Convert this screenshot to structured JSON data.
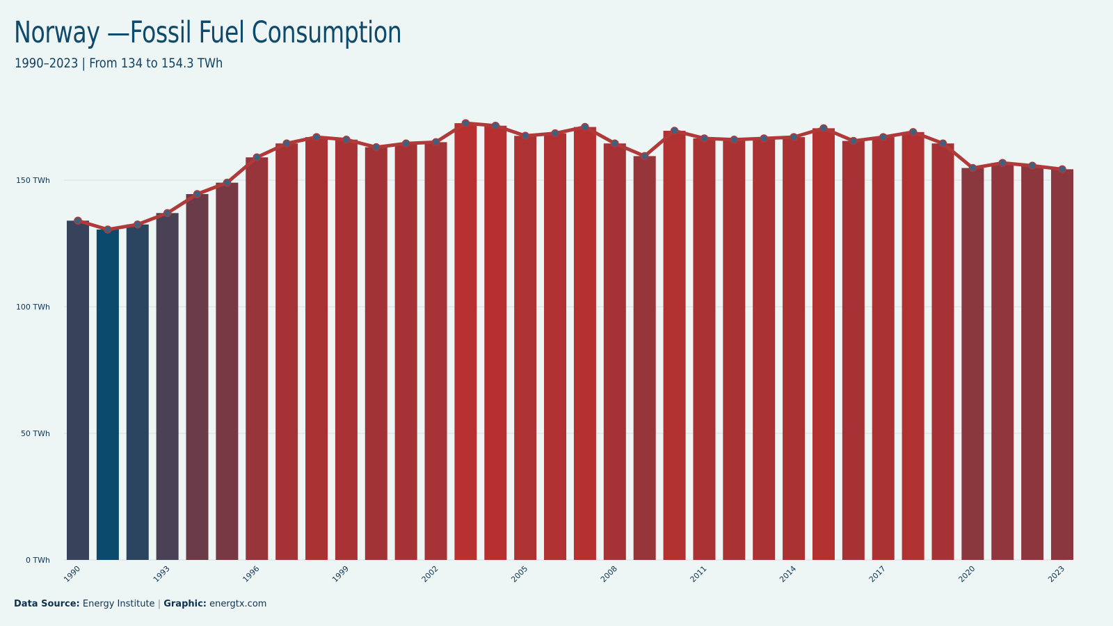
{
  "header": {
    "title": "Norway —Fossil Fuel Consumption",
    "subtitle": "1990–2023 | From 134 to 154.3 TWh"
  },
  "footer": {
    "source_label": "Data Source:",
    "source_value": "Energy Institute",
    "separator": "|",
    "graphic_label": "Graphic:",
    "graphic_value": "energtx.com"
  },
  "colors": {
    "background": "#eef5f5",
    "line": "#b03a3a",
    "marker_fill": "#3d6280",
    "low": "#0b4a6a",
    "high": "#b8302f",
    "grid": "#d5dfe3",
    "axis_text": "#0e3350"
  },
  "chart_data": {
    "type": "bar",
    "categories": [
      "1990",
      "1991",
      "1992",
      "1993",
      "1994",
      "1995",
      "1996",
      "1997",
      "1998",
      "1999",
      "2000",
      "2001",
      "2002",
      "2003",
      "2004",
      "2005",
      "2006",
      "2007",
      "2008",
      "2009",
      "2010",
      "2011",
      "2012",
      "2013",
      "2014",
      "2015",
      "2016",
      "2017",
      "2018",
      "2019",
      "2020",
      "2021",
      "2022",
      "2023"
    ],
    "x_tick_labels": [
      "1990",
      "1993",
      "1996",
      "1999",
      "2002",
      "2005",
      "2008",
      "2011",
      "2014",
      "2017",
      "2020",
      "2023"
    ],
    "series": [
      {
        "values": [
          134,
          130.5,
          132.5,
          137,
          144.5,
          149,
          159,
          164.5,
          167,
          166,
          163,
          164.5,
          165,
          172.5,
          171.5,
          167.5,
          168.5,
          171,
          164.5,
          159.5,
          169.5,
          166.5,
          166,
          166.5,
          167,
          170.5,
          165.5,
          167,
          169,
          164.5,
          154.8,
          156.8,
          155.7,
          154.3
        ]
      }
    ],
    "overlay": "line-with-markers",
    "ylim": [
      0,
      175
    ],
    "y_ticks": [
      0,
      50,
      100,
      150
    ],
    "y_tick_labels": [
      "0 TWh",
      "50 TWh",
      "100 TWh",
      "150 TWh"
    ],
    "grid": true,
    "legend": "none",
    "title": "Norway —Fossil Fuel Consumption",
    "subtitle": "1990–2023 | From 134 to 154.3 TWh",
    "xlabel": "",
    "ylabel": ""
  }
}
